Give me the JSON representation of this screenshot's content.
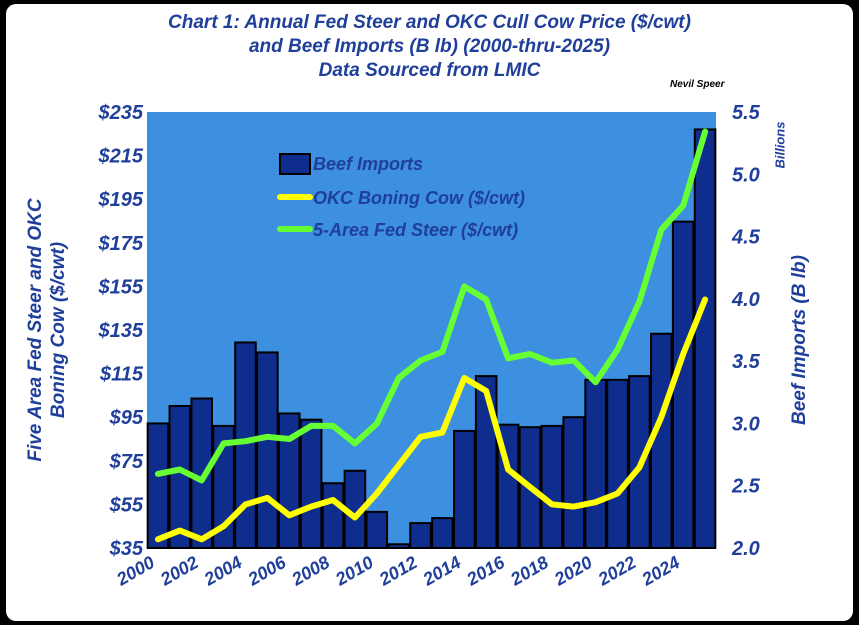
{
  "title_line1": "Chart 1:   Annual Fed Steer and OKC Cull Cow Price ($/cwt)",
  "title_line2": "and Beef Imports (B lb) (2000-thru-2025)",
  "title_line3": "Data Sourced from LMIC",
  "author": "Nevil Speer",
  "colors": {
    "plot_bg": "#3d8fe0",
    "bars": "#0f2d8c",
    "bar_edge": "#000000",
    "okc": "#ffff00",
    "steer": "#66ff33",
    "text": "#1f3f9a"
  },
  "chart_data": {
    "type": "bar",
    "x": [
      2000,
      2001,
      2002,
      2003,
      2004,
      2005,
      2006,
      2007,
      2008,
      2009,
      2010,
      2011,
      2012,
      2013,
      2014,
      2015,
      2016,
      2017,
      2018,
      2019,
      2020,
      2021,
      2022,
      2023,
      2024,
      2025
    ],
    "xticks": [
      "2000",
      "2002",
      "2004",
      "2006",
      "2008",
      "2010",
      "2012",
      "2014",
      "2016",
      "2018",
      "2020",
      "2022",
      "2024"
    ],
    "ylabel": "Five Area Fed Steer and OKC Boning Cow ($/cwt)",
    "y2label": "Beef Imports (B lb)",
    "y2units": "Billions",
    "ylim": [
      35,
      235
    ],
    "yticks": [
      "$35",
      "$55",
      "$75",
      "$95",
      "$115",
      "$135",
      "$155",
      "$175",
      "$195",
      "$215",
      "$235"
    ],
    "y2lim": [
      2.0,
      5.5
    ],
    "y2ticks": [
      "2.0",
      "2.5",
      "3.0",
      "3.5",
      "4.0",
      "4.5",
      "5.0",
      "5.5"
    ],
    "series": [
      {
        "name": "Beef Imports",
        "type": "bar",
        "axis": "right",
        "values": [
          3.0,
          3.14,
          3.2,
          2.98,
          3.65,
          3.57,
          3.08,
          3.03,
          2.52,
          2.62,
          2.29,
          2.03,
          2.2,
          2.24,
          2.94,
          3.38,
          2.99,
          2.97,
          2.98,
          3.05,
          3.35,
          3.35,
          3.38,
          3.72,
          4.62,
          5.36
        ]
      },
      {
        "name": "OKC Boning Cow ($/cwt)",
        "type": "line",
        "axis": "left",
        "values": [
          39,
          43,
          39,
          45,
          55,
          58,
          50,
          54,
          57,
          49,
          60,
          73,
          86,
          88,
          113,
          107,
          71,
          63,
          55,
          54,
          56,
          60,
          72,
          95,
          124,
          149
        ]
      },
      {
        "name": "5-Area Fed Steer ($/cwt)",
        "type": "line",
        "axis": "left",
        "values": [
          69,
          71,
          66,
          83,
          84,
          86,
          85,
          91,
          91,
          83,
          92,
          113,
          121,
          125,
          155,
          149,
          122,
          124,
          120,
          121,
          111,
          126,
          148,
          181,
          192,
          226
        ]
      }
    ],
    "legend": "top-left"
  }
}
